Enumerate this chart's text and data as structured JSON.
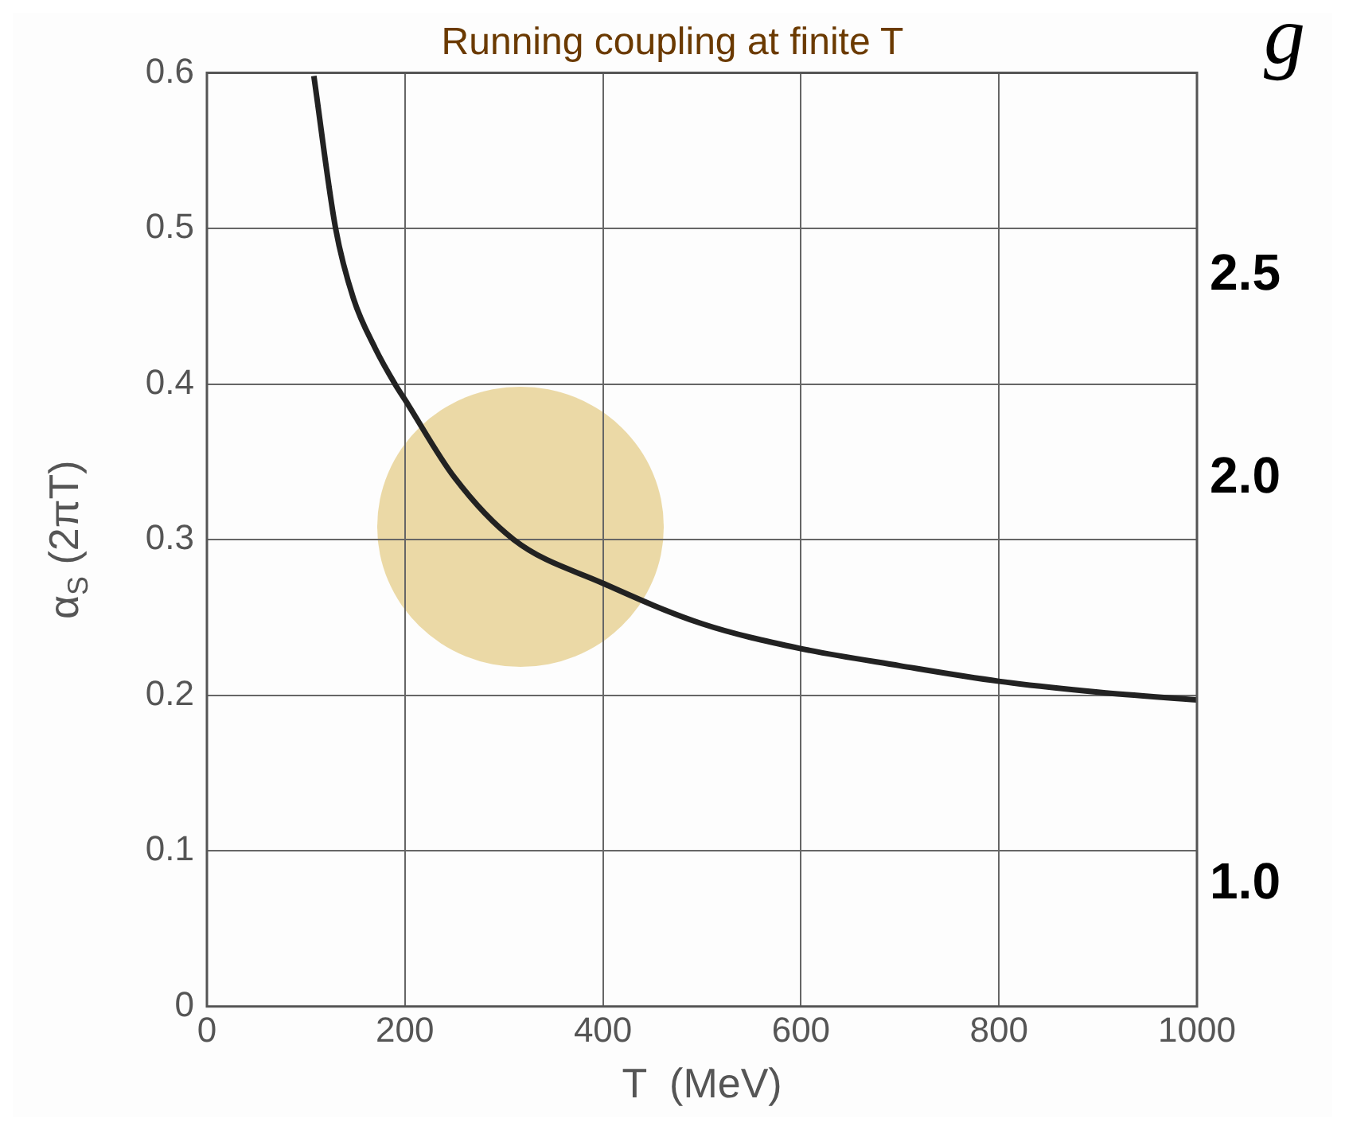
{
  "chart_data": {
    "type": "line",
    "title": "Running coupling at finite T",
    "xlabel": "T  (MeV)",
    "ylabel": "α$_{S}$ (2πT)",
    "y2label": "g",
    "series": [
      {
        "color": "#222222",
        "x": [
          108,
          130,
          148,
          170,
          190,
          200,
          250,
          310,
          400,
          500,
          600,
          700,
          800,
          900,
          1000
        ],
        "values": [
          0.598,
          0.5,
          0.455,
          0.423,
          0.4,
          0.39,
          0.34,
          0.3,
          0.272,
          0.246,
          0.23,
          0.219,
          0.209,
          0.202,
          0.197
        ]
      }
    ],
    "xlim": [
      0,
      1000
    ],
    "xticks": [
      0,
      200,
      400,
      600,
      800,
      1000
    ],
    "ylim": [
      0,
      0.6
    ],
    "yticks": [
      0,
      0.1,
      0.2,
      0.3,
      0.4,
      0.5,
      0.6
    ],
    "y2lim": [
      0.7,
      3.0
    ],
    "y2ticks": [
      {
        "value": 1.0,
        "label": "1.0"
      },
      {
        "value": 2.0,
        "label": "2.0"
      },
      {
        "value": 2.5,
        "label": "2.5"
      }
    ],
    "grid": true,
    "legend": false,
    "marker": "none",
    "line_style": "solid"
  }
}
